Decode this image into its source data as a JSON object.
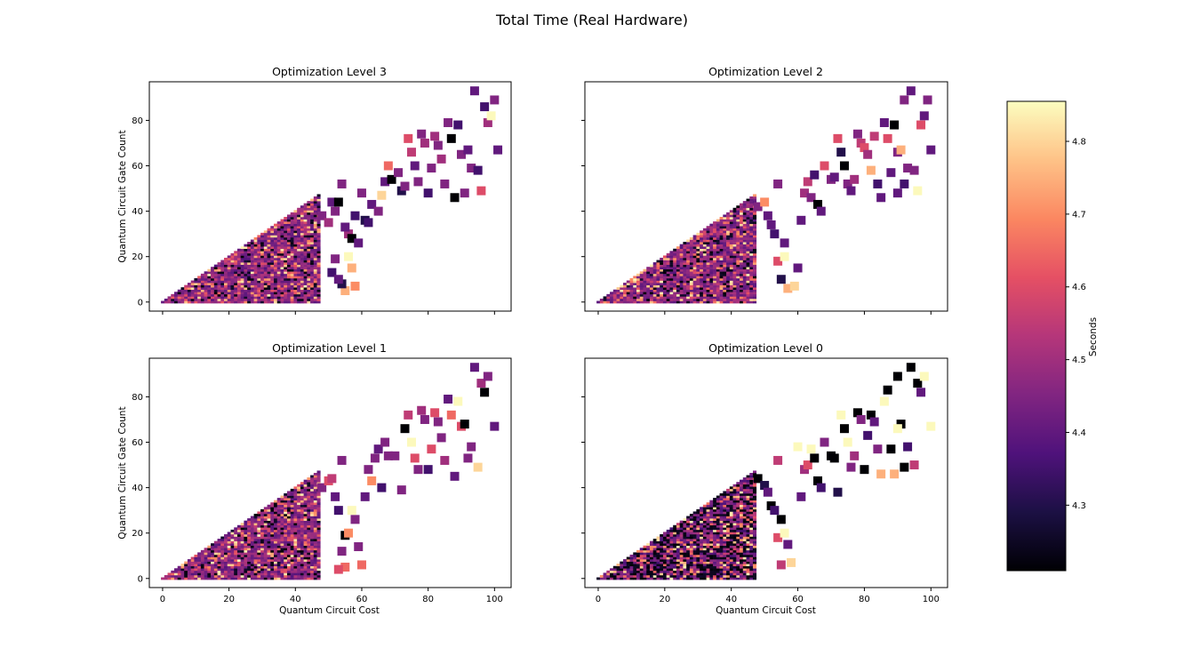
{
  "figure": {
    "title": "Total Time (Real Hardware)"
  },
  "colorbar": {
    "label": "Seconds",
    "min": 4.21,
    "max": 4.855,
    "ticks": [
      4.3,
      4.4,
      4.5,
      4.6,
      4.7,
      4.8
    ],
    "tick_labels": [
      "4.3",
      "4.4",
      "4.5",
      "4.6",
      "4.7",
      "4.8"
    ],
    "colormap": "magma"
  },
  "chart_data": [
    {
      "type": "heatmap",
      "title": "Optimization Level 3",
      "xlabel": "",
      "ylabel": "Quantum Circuit Gate Count",
      "xlim": [
        -4,
        105
      ],
      "ylim": [
        -4,
        97
      ],
      "xticks": [
        0,
        20,
        40,
        60,
        80,
        100
      ],
      "xtick_labels": [],
      "yticks": [
        0,
        20,
        40,
        60,
        80
      ],
      "ytick_labels": [
        "0",
        "20",
        "40",
        "60",
        "80"
      ],
      "seed": 1,
      "dense_region": {
        "x_max": 47,
        "y_max_ratio": 1.0
      },
      "sparse_points": [
        [
          48,
          38,
          4.45
        ],
        [
          50,
          35,
          4.5
        ],
        [
          51,
          44,
          4.4
        ],
        [
          52,
          40,
          4.45
        ],
        [
          53,
          44,
          4.21
        ],
        [
          54,
          52,
          4.45
        ],
        [
          56,
          30,
          4.5
        ],
        [
          57,
          28,
          4.21
        ],
        [
          59,
          26,
          4.4
        ],
        [
          55,
          33,
          4.4
        ],
        [
          58,
          38,
          4.35
        ],
        [
          60,
          48,
          4.45
        ],
        [
          61,
          36,
          4.3
        ],
        [
          62,
          35,
          4.35
        ],
        [
          63,
          43,
          4.4
        ],
        [
          65,
          40,
          4.45
        ],
        [
          66,
          47,
          4.8
        ],
        [
          67,
          53,
          4.4
        ],
        [
          68,
          60,
          4.65
        ],
        [
          69,
          54,
          4.21
        ],
        [
          71,
          57,
          4.45
        ],
        [
          72,
          49,
          4.3
        ],
        [
          73,
          51,
          4.45
        ],
        [
          74,
          72,
          4.6
        ],
        [
          75,
          66,
          4.55
        ],
        [
          76,
          60,
          4.4
        ],
        [
          77,
          53,
          4.45
        ],
        [
          78,
          74,
          4.45
        ],
        [
          79,
          70,
          4.5
        ],
        [
          80,
          48,
          4.35
        ],
        [
          81,
          59,
          4.45
        ],
        [
          82,
          73,
          4.5
        ],
        [
          83,
          69,
          4.45
        ],
        [
          84,
          63,
          4.5
        ],
        [
          85,
          52,
          4.45
        ],
        [
          86,
          79,
          4.45
        ],
        [
          87,
          72,
          4.21
        ],
        [
          88,
          46,
          4.21
        ],
        [
          89,
          78,
          4.35
        ],
        [
          90,
          65,
          4.45
        ],
        [
          91,
          48,
          4.45
        ],
        [
          92,
          67,
          4.4
        ],
        [
          93,
          59,
          4.45
        ],
        [
          94,
          93,
          4.4
        ],
        [
          95,
          58,
          4.35
        ],
        [
          96,
          49,
          4.6
        ],
        [
          97,
          86,
          4.35
        ],
        [
          98,
          79,
          4.5
        ],
        [
          99,
          82,
          4.85
        ],
        [
          100,
          89,
          4.45
        ],
        [
          101,
          67,
          4.4
        ],
        [
          57,
          15,
          4.75
        ],
        [
          55,
          5,
          4.75
        ],
        [
          54,
          8,
          4.3
        ],
        [
          58,
          7,
          4.7
        ],
        [
          51,
          13,
          4.35
        ],
        [
          52,
          19,
          4.45
        ],
        [
          53,
          10,
          4.4
        ],
        [
          56,
          20,
          4.85
        ]
      ]
    },
    {
      "type": "heatmap",
      "title": "Optimization Level 2",
      "xlabel": "",
      "ylabel": "",
      "xlim": [
        -4,
        105
      ],
      "ylim": [
        -4,
        97
      ],
      "xticks": [
        0,
        20,
        40,
        60,
        80,
        100
      ],
      "xtick_labels": [],
      "yticks": [
        0,
        20,
        40,
        60,
        80
      ],
      "ytick_labels": [],
      "seed": 2,
      "dense_region": {
        "x_max": 47,
        "y_max_ratio": 1.0
      },
      "sparse_points": [
        [
          48,
          42,
          4.45
        ],
        [
          50,
          44,
          4.7
        ],
        [
          51,
          38,
          4.4
        ],
        [
          52,
          34,
          4.4
        ],
        [
          53,
          30,
          4.35
        ],
        [
          54,
          52,
          4.45
        ],
        [
          56,
          26,
          4.4
        ],
        [
          54,
          18,
          4.6
        ],
        [
          55,
          10,
          4.3
        ],
        [
          57,
          6,
          4.75
        ],
        [
          59,
          7,
          4.8
        ],
        [
          60,
          15,
          4.4
        ],
        [
          61,
          36,
          4.4
        ],
        [
          62,
          48,
          4.5
        ],
        [
          63,
          53,
          4.55
        ],
        [
          64,
          46,
          4.45
        ],
        [
          65,
          56,
          4.35
        ],
        [
          66,
          43,
          4.21
        ],
        [
          67,
          40,
          4.4
        ],
        [
          68,
          60,
          4.6
        ],
        [
          70,
          54,
          4.45
        ],
        [
          71,
          55,
          4.4
        ],
        [
          72,
          72,
          4.6
        ],
        [
          73,
          66,
          4.3
        ],
        [
          74,
          60,
          4.21
        ],
        [
          75,
          52,
          4.45
        ],
        [
          76,
          49,
          4.4
        ],
        [
          77,
          54,
          4.5
        ],
        [
          78,
          74,
          4.45
        ],
        [
          79,
          70,
          4.55
        ],
        [
          80,
          68,
          4.6
        ],
        [
          81,
          65,
          4.5
        ],
        [
          82,
          58,
          4.75
        ],
        [
          83,
          73,
          4.55
        ],
        [
          84,
          52,
          4.35
        ],
        [
          85,
          46,
          4.4
        ],
        [
          86,
          79,
          4.4
        ],
        [
          87,
          72,
          4.6
        ],
        [
          88,
          57,
          4.4
        ],
        [
          89,
          78,
          4.21
        ],
        [
          90,
          66,
          4.45
        ],
        [
          91,
          67,
          4.75
        ],
        [
          92,
          52,
          4.35
        ],
        [
          93,
          59,
          4.45
        ],
        [
          94,
          93,
          4.4
        ],
        [
          95,
          58,
          4.45
        ],
        [
          96,
          49,
          4.85
        ],
        [
          97,
          78,
          4.6
        ],
        [
          98,
          82,
          4.4
        ],
        [
          99,
          89,
          4.45
        ],
        [
          100,
          67,
          4.4
        ],
        [
          92,
          89,
          4.45
        ],
        [
          90,
          48,
          4.4
        ],
        [
          56,
          20,
          4.85
        ]
      ]
    },
    {
      "type": "heatmap",
      "title": "Optimization Level 1",
      "xlabel": "Quantum Circuit Cost",
      "ylabel": "Quantum Circuit Gate Count",
      "xlim": [
        -4,
        105
      ],
      "ylim": [
        -4,
        97
      ],
      "xticks": [
        0,
        20,
        40,
        60,
        80,
        100
      ],
      "xtick_labels": [
        "0",
        "20",
        "40",
        "60",
        "80",
        "100"
      ],
      "yticks": [
        0,
        20,
        40,
        60,
        80
      ],
      "ytick_labels": [
        "0",
        "20",
        "40",
        "60",
        "80"
      ],
      "seed": 3,
      "dense_region": {
        "x_max": 47,
        "y_max_ratio": 1.0
      },
      "sparse_points": [
        [
          48,
          40,
          4.45
        ],
        [
          50,
          43,
          4.6
        ],
        [
          51,
          44,
          4.55
        ],
        [
          52,
          36,
          4.4
        ],
        [
          53,
          30,
          4.35
        ],
        [
          54,
          52,
          4.45
        ],
        [
          55,
          19,
          4.21
        ],
        [
          54,
          12,
          4.45
        ],
        [
          56,
          20,
          4.7
        ],
        [
          57,
          30,
          4.85
        ],
        [
          58,
          26,
          4.45
        ],
        [
          59,
          14,
          4.45
        ],
        [
          55,
          5,
          4.65
        ],
        [
          53,
          4,
          4.6
        ],
        [
          60,
          6,
          4.65
        ],
        [
          61,
          36,
          4.4
        ],
        [
          62,
          48,
          4.45
        ],
        [
          63,
          43,
          4.7
        ],
        [
          64,
          53,
          4.45
        ],
        [
          65,
          57,
          4.4
        ],
        [
          66,
          40,
          4.35
        ],
        [
          67,
          60,
          4.45
        ],
        [
          68,
          54,
          4.45
        ],
        [
          70,
          54,
          4.45
        ],
        [
          72,
          39,
          4.45
        ],
        [
          73,
          66,
          4.21
        ],
        [
          74,
          72,
          4.55
        ],
        [
          75,
          60,
          4.85
        ],
        [
          76,
          53,
          4.6
        ],
        [
          77,
          48,
          4.45
        ],
        [
          78,
          74,
          4.5
        ],
        [
          79,
          70,
          4.45
        ],
        [
          80,
          48,
          4.35
        ],
        [
          81,
          57,
          4.6
        ],
        [
          82,
          73,
          4.6
        ],
        [
          83,
          69,
          4.45
        ],
        [
          84,
          62,
          4.45
        ],
        [
          85,
          52,
          4.5
        ],
        [
          86,
          79,
          4.4
        ],
        [
          87,
          72,
          4.65
        ],
        [
          88,
          45,
          4.4
        ],
        [
          89,
          78,
          4.85
        ],
        [
          90,
          67,
          4.6
        ],
        [
          91,
          68,
          4.21
        ],
        [
          92,
          53,
          4.45
        ],
        [
          93,
          58,
          4.45
        ],
        [
          94,
          93,
          4.4
        ],
        [
          95,
          49,
          4.8
        ],
        [
          96,
          86,
          4.5
        ],
        [
          97,
          82,
          4.21
        ],
        [
          98,
          89,
          4.45
        ],
        [
          100,
          67,
          4.4
        ]
      ]
    },
    {
      "type": "heatmap",
      "title": "Optimization Level 0",
      "xlabel": "Quantum Circuit Cost",
      "ylabel": "",
      "xlim": [
        -4,
        105
      ],
      "ylim": [
        -4,
        97
      ],
      "xticks": [
        0,
        20,
        40,
        60,
        80,
        100
      ],
      "xtick_labels": [
        "0",
        "20",
        "40",
        "60",
        "80",
        "100"
      ],
      "yticks": [
        0,
        20,
        40,
        60,
        80
      ],
      "ytick_labels": [],
      "seed": 4,
      "dark_bias": true,
      "dense_region": {
        "x_max": 47,
        "y_max_ratio": 1.0
      },
      "sparse_points": [
        [
          48,
          44,
          4.21
        ],
        [
          50,
          41,
          4.3
        ],
        [
          51,
          38,
          4.4
        ],
        [
          52,
          32,
          4.21
        ],
        [
          53,
          30,
          4.35
        ],
        [
          54,
          52,
          4.55
        ],
        [
          55,
          26,
          4.21
        ],
        [
          54,
          18,
          4.6
        ],
        [
          56,
          20,
          4.85
        ],
        [
          57,
          15,
          4.4
        ],
        [
          58,
          7,
          4.8
        ],
        [
          55,
          6,
          4.55
        ],
        [
          60,
          58,
          4.85
        ],
        [
          61,
          36,
          4.4
        ],
        [
          62,
          48,
          4.5
        ],
        [
          63,
          50,
          4.6
        ],
        [
          64,
          57,
          4.85
        ],
        [
          65,
          53,
          4.21
        ],
        [
          66,
          43,
          4.21
        ],
        [
          67,
          40,
          4.35
        ],
        [
          68,
          60,
          4.45
        ],
        [
          70,
          54,
          4.21
        ],
        [
          71,
          53,
          4.21
        ],
        [
          72,
          38,
          4.3
        ],
        [
          73,
          72,
          4.85
        ],
        [
          74,
          66,
          4.21
        ],
        [
          75,
          60,
          4.85
        ],
        [
          76,
          49,
          4.45
        ],
        [
          77,
          54,
          4.5
        ],
        [
          78,
          73,
          4.21
        ],
        [
          79,
          70,
          4.45
        ],
        [
          80,
          48,
          4.21
        ],
        [
          81,
          63,
          4.35
        ],
        [
          82,
          72,
          4.21
        ],
        [
          83,
          69,
          4.4
        ],
        [
          84,
          57,
          4.45
        ],
        [
          85,
          46,
          4.75
        ],
        [
          86,
          78,
          4.85
        ],
        [
          87,
          83,
          4.21
        ],
        [
          88,
          57,
          4.21
        ],
        [
          89,
          46,
          4.75
        ],
        [
          90,
          89,
          4.21
        ],
        [
          91,
          68,
          4.21
        ],
        [
          92,
          49,
          4.21
        ],
        [
          93,
          58,
          4.35
        ],
        [
          94,
          93,
          4.21
        ],
        [
          95,
          50,
          4.55
        ],
        [
          96,
          86,
          4.21
        ],
        [
          97,
          82,
          4.4
        ],
        [
          98,
          89,
          4.85
        ],
        [
          100,
          67,
          4.85
        ],
        [
          90,
          66,
          4.85
        ]
      ]
    }
  ]
}
